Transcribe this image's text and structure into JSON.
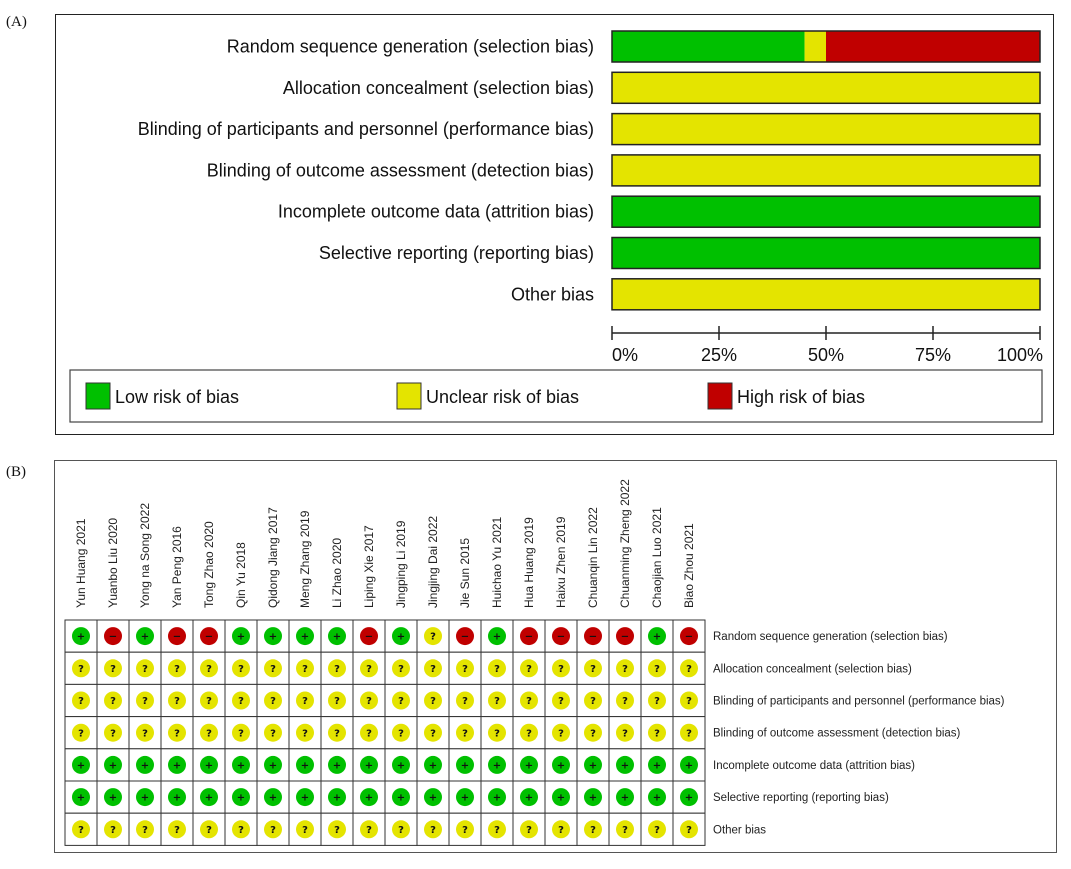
{
  "panels": {
    "a_label": "(A)",
    "b_label": "(B)"
  },
  "colors": {
    "low": "#00c000",
    "unclear": "#e4e400",
    "high": "#c00000"
  },
  "chart_data": [
    {
      "type": "bar",
      "subtype": "stacked-horizontal-percent",
      "title": "Risk of bias graph",
      "categories": [
        "Random sequence generation (selection bias)",
        "Allocation concealment (selection bias)",
        "Blinding of participants and personnel (performance bias)",
        "Blinding of outcome assessment (detection bias)",
        "Incomplete outcome data (attrition bias)",
        "Selective reporting (reporting bias)",
        "Other bias"
      ],
      "series": [
        {
          "name": "Low risk of bias",
          "key": "low",
          "values": [
            45,
            0,
            0,
            0,
            100,
            100,
            0
          ]
        },
        {
          "name": "Unclear risk of bias",
          "key": "unclear",
          "values": [
            5,
            100,
            100,
            100,
            0,
            0,
            100
          ]
        },
        {
          "name": "High risk of bias",
          "key": "high",
          "values": [
            50,
            0,
            0,
            0,
            0,
            0,
            0
          ]
        }
      ],
      "xlim": [
        0,
        100
      ],
      "xticks": [
        "0%",
        "25%",
        "50%",
        "75%",
        "100%"
      ],
      "xlabel": "",
      "ylabel": "",
      "legend": {
        "placement": "bottom",
        "entries": [
          {
            "key": "low",
            "label": "Low risk of bias"
          },
          {
            "key": "unclear",
            "label": "Unclear risk of bias"
          },
          {
            "key": "high",
            "label": "High risk of bias"
          }
        ]
      },
      "grid": false
    },
    {
      "type": "table",
      "subtype": "risk-of-bias-summary",
      "title": "Risk of bias summary",
      "studies": [
        "Yun Huang 2021",
        "Yuanbo Liu 2020",
        "Yong na Song 2022",
        "Yan Peng 2016",
        "Tong Zhao 2020",
        "Qin Yu 2018",
        "Qidong Jiang 2017",
        "Meng Zhang 2019",
        "Li Zhao 2020",
        "Liping Xie 2017",
        "Jingping Li 2019",
        "Jingjing Dai 2022",
        "Jie Sun 2015",
        "Huichao Yu 2021",
        "Hua Huang 2019",
        "Haixu Zhen 2019",
        "Chuanqin Lin 2022",
        "Chuanming Zheng 2022",
        "Chaojian Luo 2021",
        "Biao Zhou 2021"
      ],
      "domains": [
        "Random sequence generation (selection bias)",
        "Allocation concealment (selection bias)",
        "Blinding of participants and personnel (performance bias)",
        "Blinding of outcome assessment (detection bias)",
        "Incomplete outcome data (attrition bias)",
        "Selective reporting (reporting bias)",
        "Other bias"
      ],
      "symbols": {
        "low": "+",
        "unclear": "?",
        "high": "−"
      },
      "judgements": [
        [
          "low",
          "high",
          "low",
          "high",
          "high",
          "low",
          "low",
          "low",
          "low",
          "high",
          "low",
          "unclear",
          "high",
          "low",
          "high",
          "high",
          "high",
          "high",
          "low",
          "high"
        ],
        [
          "unclear",
          "unclear",
          "unclear",
          "unclear",
          "unclear",
          "unclear",
          "unclear",
          "unclear",
          "unclear",
          "unclear",
          "unclear",
          "unclear",
          "unclear",
          "unclear",
          "unclear",
          "unclear",
          "unclear",
          "unclear",
          "unclear",
          "unclear"
        ],
        [
          "unclear",
          "unclear",
          "unclear",
          "unclear",
          "unclear",
          "unclear",
          "unclear",
          "unclear",
          "unclear",
          "unclear",
          "unclear",
          "unclear",
          "unclear",
          "unclear",
          "unclear",
          "unclear",
          "unclear",
          "unclear",
          "unclear",
          "unclear"
        ],
        [
          "unclear",
          "unclear",
          "unclear",
          "unclear",
          "unclear",
          "unclear",
          "unclear",
          "unclear",
          "unclear",
          "unclear",
          "unclear",
          "unclear",
          "unclear",
          "unclear",
          "unclear",
          "unclear",
          "unclear",
          "unclear",
          "unclear",
          "unclear"
        ],
        [
          "low",
          "low",
          "low",
          "low",
          "low",
          "low",
          "low",
          "low",
          "low",
          "low",
          "low",
          "low",
          "low",
          "low",
          "low",
          "low",
          "low",
          "low",
          "low",
          "low"
        ],
        [
          "low",
          "low",
          "low",
          "low",
          "low",
          "low",
          "low",
          "low",
          "low",
          "low",
          "low",
          "low",
          "low",
          "low",
          "low",
          "low",
          "low",
          "low",
          "low",
          "low"
        ],
        [
          "unclear",
          "unclear",
          "unclear",
          "unclear",
          "unclear",
          "unclear",
          "unclear",
          "unclear",
          "unclear",
          "unclear",
          "unclear",
          "unclear",
          "unclear",
          "unclear",
          "unclear",
          "unclear",
          "unclear",
          "unclear",
          "unclear",
          "unclear"
        ]
      ]
    }
  ]
}
